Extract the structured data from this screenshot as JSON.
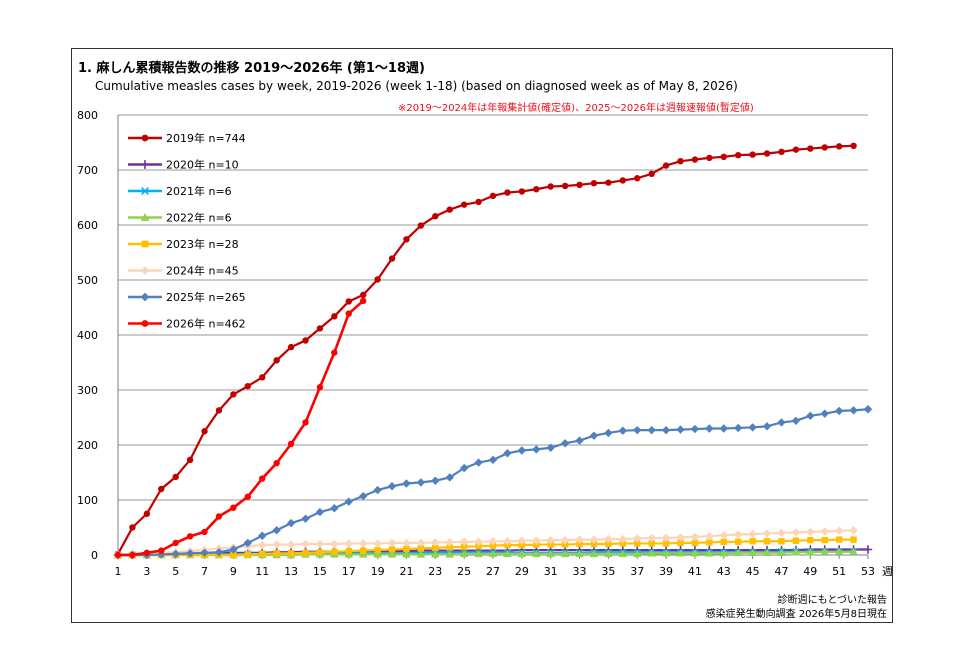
{
  "chart_data": {
    "type": "line",
    "title": "1. 麻しん累積報告数の推移  2019～2026年 (第1～18週)",
    "subtitle": "Cumulative measles cases by week, 2019-2026 (week 1-18)  (based on diagnosed week as of May 8, 2026)",
    "note": "※2019～2024年は年報集計値(確定値)、2025～2026年は週報速報値(暫定値)",
    "xlabel": "週",
    "ylabel": "",
    "xlim": [
      1,
      53
    ],
    "ylim": [
      0,
      800
    ],
    "yticks": [
      0,
      100,
      200,
      300,
      400,
      500,
      600,
      700,
      800
    ],
    "xticks": [
      1,
      3,
      5,
      7,
      9,
      11,
      13,
      15,
      17,
      19,
      21,
      23,
      25,
      27,
      29,
      31,
      33,
      35,
      37,
      39,
      41,
      43,
      45,
      47,
      49,
      51,
      53
    ],
    "grid": "horizontal",
    "legend_position": "top-left",
    "series": [
      {
        "name": "2019年 n=744",
        "color": "#c00000",
        "marker": "circle",
        "values": [
          2,
          50,
          75,
          120,
          142,
          173,
          225,
          263,
          292,
          307,
          323,
          354,
          378,
          390,
          412,
          434,
          461,
          473,
          501,
          539,
          574,
          599,
          616,
          628,
          637,
          642,
          653,
          659,
          661,
          665,
          670,
          671,
          673,
          676,
          677,
          681,
          685,
          693,
          708,
          716,
          719,
          722,
          724,
          727,
          728,
          730,
          733,
          737,
          739,
          741,
          743,
          744
        ]
      },
      {
        "name": "2020年 n=10",
        "color": "#7030a0",
        "marker": "plus",
        "values": [
          0,
          0,
          1,
          2,
          3,
          3,
          3,
          4,
          4,
          4,
          4,
          5,
          5,
          6,
          6,
          6,
          6,
          7,
          7,
          7,
          7,
          8,
          8,
          8,
          8,
          8,
          8,
          8,
          9,
          9,
          9,
          9,
          9,
          9,
          9,
          9,
          9,
          9,
          9,
          9,
          9,
          9,
          9,
          9,
          9,
          9,
          9,
          9,
          10,
          10,
          10,
          10,
          10
        ]
      },
      {
        "name": "2021年 n=6",
        "color": "#00b0f0",
        "marker": "x",
        "values": [
          0,
          0,
          0,
          1,
          1,
          1,
          1,
          1,
          1,
          2,
          2,
          2,
          2,
          2,
          3,
          3,
          3,
          3,
          3,
          3,
          3,
          4,
          4,
          4,
          4,
          4,
          4,
          4,
          4,
          4,
          4,
          4,
          4,
          5,
          5,
          5,
          5,
          5,
          5,
          5,
          5,
          5,
          5,
          5,
          5,
          5,
          6,
          6,
          6,
          6,
          6,
          6
        ]
      },
      {
        "name": "2022年 n=6",
        "color": "#92d050",
        "marker": "triangle",
        "values": [
          0,
          0,
          0,
          0,
          0,
          0,
          0,
          0,
          0,
          0,
          0,
          0,
          0,
          1,
          1,
          1,
          1,
          1,
          1,
          1,
          1,
          1,
          1,
          1,
          2,
          2,
          2,
          2,
          2,
          2,
          2,
          2,
          2,
          2,
          2,
          2,
          2,
          3,
          3,
          3,
          3,
          3,
          3,
          4,
          4,
          4,
          4,
          5,
          5,
          6,
          6,
          6
        ]
      },
      {
        "name": "2023年 n=28",
        "color": "#ffc000",
        "marker": "square",
        "values": [
          0,
          0,
          0,
          0,
          0,
          0,
          0,
          0,
          0,
          1,
          2,
          3,
          3,
          4,
          5,
          6,
          7,
          8,
          9,
          10,
          11,
          12,
          13,
          14,
          15,
          16,
          17,
          18,
          18,
          19,
          19,
          19,
          20,
          20,
          20,
          21,
          21,
          21,
          21,
          22,
          22,
          23,
          24,
          24,
          25,
          25,
          25,
          26,
          27,
          27,
          28,
          28
        ]
      },
      {
        "name": "2024年 n=45",
        "color": "#fbd5b5",
        "marker": "diamond",
        "values": [
          1,
          2,
          3,
          4,
          5,
          7,
          9,
          12,
          14,
          16,
          18,
          19,
          19,
          20,
          20,
          20,
          21,
          21,
          21,
          22,
          22,
          22,
          23,
          23,
          24,
          24,
          25,
          25,
          26,
          26,
          27,
          27,
          28,
          28,
          29,
          29,
          30,
          31,
          31,
          32,
          33,
          34,
          36,
          37,
          38,
          39,
          40,
          41,
          42,
          43,
          44,
          45
        ]
      },
      {
        "name": "2025年 n=265",
        "color": "#4f81bd",
        "marker": "diamond",
        "values": [
          0,
          0,
          0,
          1,
          2,
          3,
          4,
          5,
          10,
          22,
          35,
          45,
          58,
          66,
          78,
          85,
          97,
          107,
          118,
          125,
          130,
          132,
          135,
          141,
          158,
          168,
          173,
          185,
          190,
          192,
          195,
          203,
          208,
          217,
          222,
          226,
          227,
          227,
          227,
          228,
          229,
          230,
          230,
          231,
          232,
          234,
          241,
          244,
          253,
          257,
          262,
          263,
          265
        ]
      },
      {
        "name": "2026年 n=462",
        "color": "#ff0000",
        "marker": "circle",
        "values": [
          0,
          0,
          4,
          8,
          22,
          34,
          42,
          70,
          86,
          106,
          139,
          167,
          202,
          241,
          305,
          368,
          439,
          462
        ]
      }
    ]
  },
  "footer": {
    "line1": "診断週にもとづいた報告",
    "line2": "感染症発生動向調査 2026年5月8日現在"
  }
}
